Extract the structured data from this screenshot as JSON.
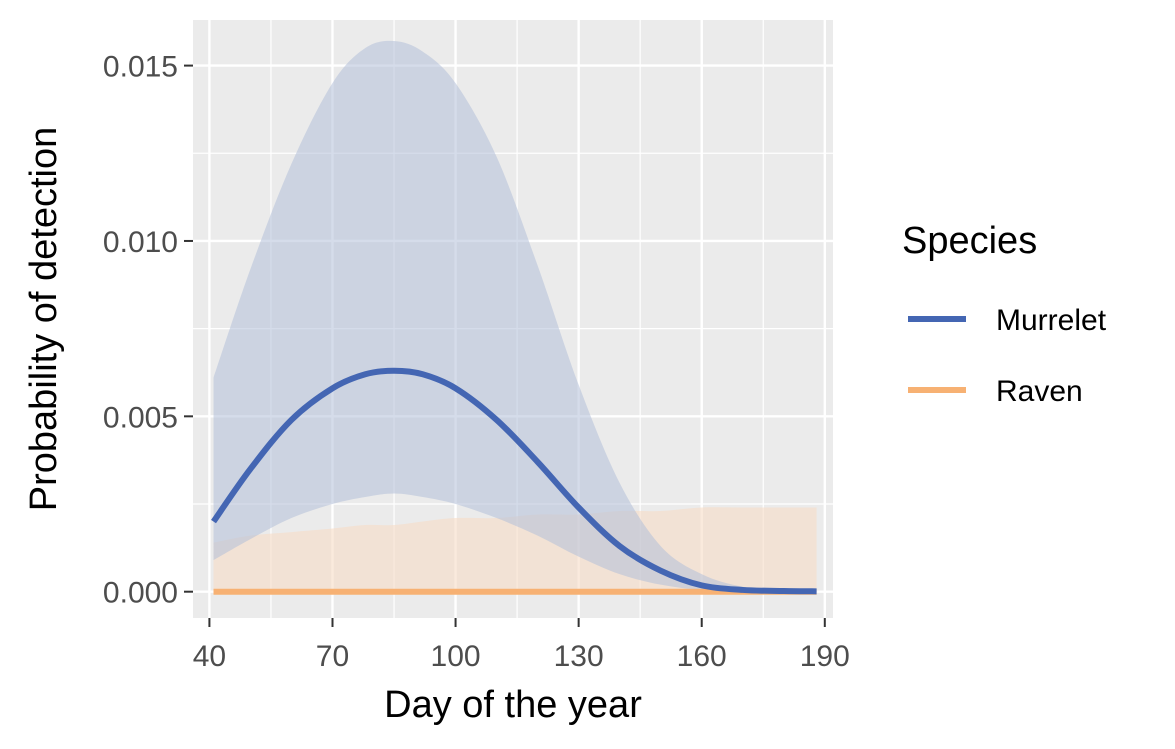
{
  "chart_data": {
    "type": "line",
    "xlabel": "Day of the year",
    "ylabel": "Probability of detection",
    "xlim": [
      36,
      192
    ],
    "ylim": [
      -0.00075,
      0.0163
    ],
    "x_ticks": [
      40,
      70,
      100,
      130,
      160,
      190
    ],
    "x_tick_labels": [
      "40",
      "70",
      "100",
      "130",
      "160",
      "190"
    ],
    "y_ticks": [
      0,
      0.005,
      0.01,
      0.015
    ],
    "y_tick_labels": [
      "0.000",
      "0.005",
      "0.010",
      "0.015"
    ],
    "grid": true,
    "legend": {
      "title": "Species",
      "position": "right"
    },
    "x": [
      41,
      50,
      60,
      70,
      78,
      85,
      92,
      100,
      110,
      120,
      130,
      140,
      150,
      160,
      170,
      180,
      188
    ],
    "series": [
      {
        "name": "Murrelet",
        "color": "#4466b3",
        "band_color": "#b3bfd9",
        "values": [
          0.002,
          0.0035,
          0.0049,
          0.0058,
          0.0062,
          0.0063,
          0.0062,
          0.0058,
          0.0049,
          0.0037,
          0.0024,
          0.0013,
          0.0006,
          0.00018,
          5e-05,
          2e-05,
          1e-05
        ],
        "lower": [
          0.0009,
          0.0015,
          0.0021,
          0.0025,
          0.0027,
          0.0028,
          0.0027,
          0.0025,
          0.0021,
          0.0016,
          0.001,
          0.0005,
          0.0002,
          5e-05,
          1e-05,
          0.0,
          0.0
        ],
        "upper": [
          0.0061,
          0.0092,
          0.0122,
          0.0145,
          0.0155,
          0.0157,
          0.0154,
          0.0145,
          0.0124,
          0.0093,
          0.0059,
          0.0031,
          0.0013,
          0.0005,
          0.00014,
          4e-05,
          2e-05
        ]
      },
      {
        "name": "Raven",
        "color": "#f7b173",
        "band_color": "#f6dcc6",
        "values": [
          0.0,
          0.0,
          0.0,
          0.0,
          0.0,
          0.0,
          0.0,
          0.0,
          0.0,
          0.0,
          0.0,
          0.0,
          0.0,
          0.0,
          0.0,
          0.0,
          0.0
        ],
        "lower": [
          0.0,
          0.0,
          0.0,
          0.0,
          0.0,
          0.0,
          0.0,
          0.0,
          0.0,
          0.0,
          0.0,
          0.0,
          0.0,
          0.0,
          0.0,
          0.0,
          0.0
        ],
        "upper": [
          0.0014,
          0.0016,
          0.0017,
          0.0018,
          0.0019,
          0.0019,
          0.002,
          0.0021,
          0.0021,
          0.0022,
          0.0022,
          0.0023,
          0.0023,
          0.0024,
          0.0024,
          0.0024,
          0.0024
        ]
      }
    ]
  }
}
